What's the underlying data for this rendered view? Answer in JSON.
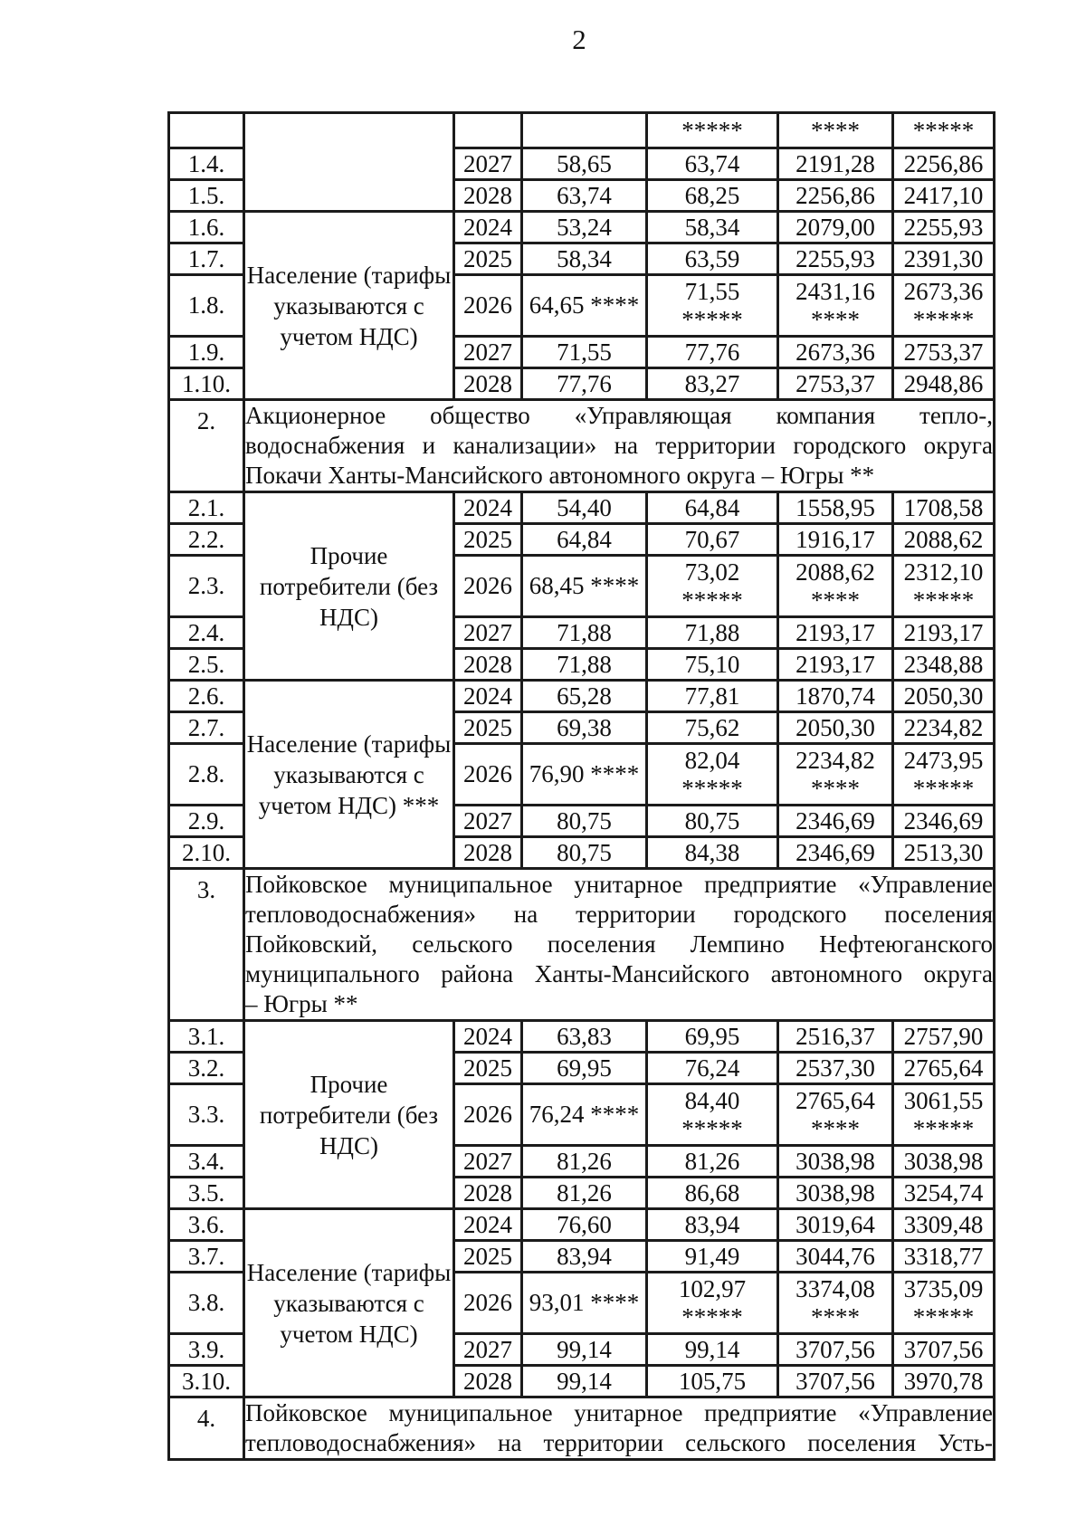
{
  "page_number": "2",
  "ink_color": "#101010",
  "table": {
    "rows": [
      {
        "kind": "cont",
        "num": "",
        "cat": "",
        "cat_span": 3,
        "year": "",
        "values": [
          "",
          "*****",
          "****",
          "*****"
        ]
      },
      {
        "kind": "data",
        "num": "1.4.",
        "year": "2027",
        "values": [
          "58,65",
          "63,74",
          "2191,28",
          "2256,86"
        ]
      },
      {
        "kind": "data",
        "num": "1.5.",
        "year": "2028",
        "values": [
          "63,74",
          "68,25",
          "2256,86",
          "2417,10"
        ]
      },
      {
        "kind": "data",
        "num": "1.6.",
        "cat": "Население (тарифы указываются с учетом НДС)",
        "cat_span": 5,
        "year": "2024",
        "values": [
          "53,24",
          "58,34",
          "2079,00",
          "2255,93"
        ]
      },
      {
        "kind": "data",
        "num": "1.7.",
        "year": "2025",
        "values": [
          "58,34",
          "63,59",
          "2255,93",
          "2391,30"
        ]
      },
      {
        "kind": "data",
        "num": "1.8.",
        "tall": true,
        "year": "2026",
        "values": [
          "64,65 ****",
          [
            "71,55",
            "*****"
          ],
          [
            "2431,16",
            "****"
          ],
          [
            "2673,36",
            "*****"
          ]
        ]
      },
      {
        "kind": "data",
        "num": "1.9.",
        "year": "2027",
        "values": [
          "71,55",
          "77,76",
          "2673,36",
          "2753,37"
        ]
      },
      {
        "kind": "data",
        "num": "1.10.",
        "year": "2028",
        "values": [
          "77,76",
          "83,27",
          "2753,37",
          "2948,86"
        ]
      },
      {
        "kind": "section",
        "num": "2.",
        "lines": [
          "Акционерное общество «Управляющая компания тепло-,",
          "водоснабжения и канализации» на территории городского округа",
          "Покачи Ханты-Мансийского автономного округа – Югры **"
        ]
      },
      {
        "kind": "data",
        "num": "2.1.",
        "cat": "Прочие потребители (без НДС)",
        "cat_span": 5,
        "year": "2024",
        "values": [
          "54,40",
          "64,84",
          "1558,95",
          "1708,58"
        ]
      },
      {
        "kind": "data",
        "num": "2.2.",
        "year": "2025",
        "values": [
          "64,84",
          "70,67",
          "1916,17",
          "2088,62"
        ]
      },
      {
        "kind": "data",
        "num": "2.3.",
        "tall": true,
        "year": "2026",
        "values": [
          "68,45 ****",
          [
            "73,02",
            "*****"
          ],
          [
            "2088,62",
            "****"
          ],
          [
            "2312,10",
            "*****"
          ]
        ]
      },
      {
        "kind": "data",
        "num": "2.4.",
        "year": "2027",
        "values": [
          "71,88",
          "71,88",
          "2193,17",
          "2193,17"
        ]
      },
      {
        "kind": "data",
        "num": "2.5.",
        "year": "2028",
        "values": [
          "71,88",
          "75,10",
          "2193,17",
          "2348,88"
        ]
      },
      {
        "kind": "data",
        "num": "2.6.",
        "cat": "Население (тарифы указываются с учетом НДС) ***",
        "cat_span": 5,
        "year": "2024",
        "values": [
          "65,28",
          "77,81",
          "1870,74",
          "2050,30"
        ]
      },
      {
        "kind": "data",
        "num": "2.7.",
        "year": "2025",
        "values": [
          "69,38",
          "75,62",
          "2050,30",
          "2234,82"
        ]
      },
      {
        "kind": "data",
        "num": "2.8.",
        "tall": true,
        "year": "2026",
        "values": [
          "76,90 ****",
          [
            "82,04",
            "*****"
          ],
          [
            "2234,82",
            "****"
          ],
          [
            "2473,95",
            "*****"
          ]
        ]
      },
      {
        "kind": "data",
        "num": "2.9.",
        "year": "2027",
        "values": [
          "80,75",
          "80,75",
          "2346,69",
          "2346,69"
        ]
      },
      {
        "kind": "data",
        "num": "2.10.",
        "year": "2028",
        "values": [
          "80,75",
          "84,38",
          "2346,69",
          "2513,30"
        ]
      },
      {
        "kind": "section",
        "num": "3.",
        "lines": [
          "Пойковское муниципальное унитарное предприятие «Управление",
          "тепловодоснабжения» на территории городского поселения",
          "Пойковский, сельского поселения Лемпино Нефтеюганского",
          "муниципального района Ханты-Мансийского автономного округа",
          "– Югры **"
        ]
      },
      {
        "kind": "data",
        "num": "3.1.",
        "cat": "Прочие потребители (без НДС)",
        "cat_span": 5,
        "year": "2024",
        "values": [
          "63,83",
          "69,95",
          "2516,37",
          "2757,90"
        ]
      },
      {
        "kind": "data",
        "num": "3.2.",
        "year": "2025",
        "values": [
          "69,95",
          "76,24",
          "2537,30",
          "2765,64"
        ]
      },
      {
        "kind": "data",
        "num": "3.3.",
        "tall": true,
        "year": "2026",
        "values": [
          "76,24 ****",
          [
            "84,40",
            "*****"
          ],
          [
            "2765,64",
            "****"
          ],
          [
            "3061,55",
            "*****"
          ]
        ]
      },
      {
        "kind": "data",
        "num": "3.4.",
        "year": "2027",
        "values": [
          "81,26",
          "81,26",
          "3038,98",
          "3038,98"
        ]
      },
      {
        "kind": "data",
        "num": "3.5.",
        "year": "2028",
        "values": [
          "81,26",
          "86,68",
          "3038,98",
          "3254,74"
        ]
      },
      {
        "kind": "data",
        "num": "3.6.",
        "cat": "Население (тарифы указываются с учетом НДС)",
        "cat_span": 5,
        "year": "2024",
        "values": [
          "76,60",
          "83,94",
          "3019,64",
          "3309,48"
        ]
      },
      {
        "kind": "data",
        "num": "3.7.",
        "year": "2025",
        "values": [
          "83,94",
          "91,49",
          "3044,76",
          "3318,77"
        ]
      },
      {
        "kind": "data",
        "num": "3.8.",
        "tall": true,
        "year": "2026",
        "values": [
          "93,01 ****",
          [
            "102,97",
            "*****"
          ],
          [
            "3374,08",
            "****"
          ],
          [
            "3735,09",
            "*****"
          ]
        ]
      },
      {
        "kind": "data",
        "num": "3.9.",
        "year": "2027",
        "values": [
          "99,14",
          "99,14",
          "3707,56",
          "3707,56"
        ]
      },
      {
        "kind": "data",
        "num": "3.10.",
        "year": "2028",
        "values": [
          "99,14",
          "105,75",
          "3707,56",
          "3970,78"
        ]
      },
      {
        "kind": "section",
        "num": "4.",
        "justify_all": true,
        "lines": [
          "Пойковское муниципальное унитарное предприятие «Управление",
          "тепловодоснабжения» на территории сельского поселения Усть-"
        ]
      }
    ]
  }
}
